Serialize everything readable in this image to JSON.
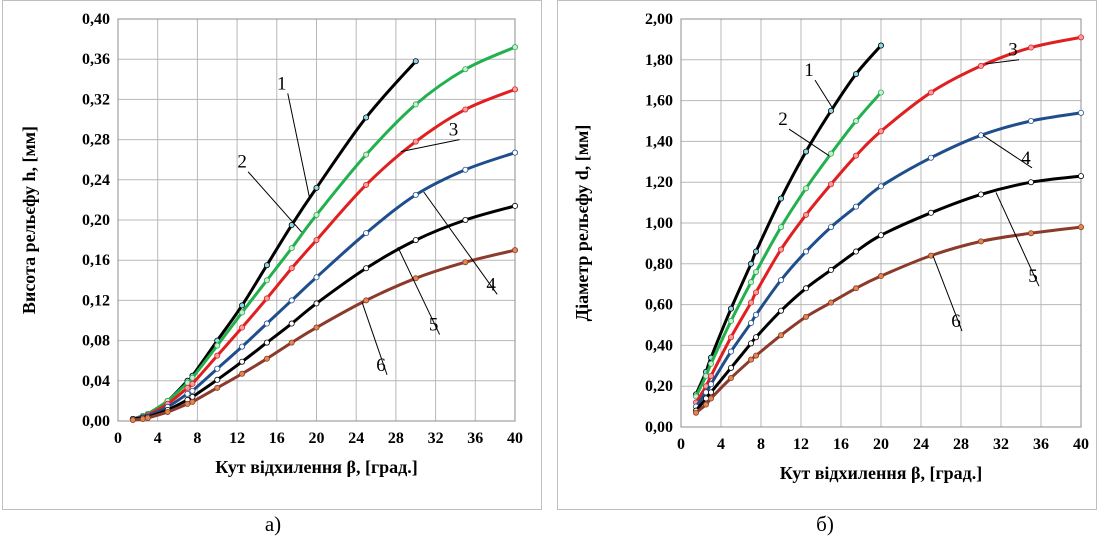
{
  "captions": {
    "left": "а)",
    "right": "б)"
  },
  "chart_data": [
    {
      "type": "line",
      "title": "",
      "xlabel": "Кут відхилення β, [град.]",
      "ylabel": "Висота рельєфу h, [мм]",
      "xlim": [
        0,
        40
      ],
      "ylim": [
        0,
        0.4
      ],
      "x_ticks": [
        "0",
        "4",
        "8",
        "12",
        "16",
        "20",
        "24",
        "28",
        "32",
        "36",
        "40"
      ],
      "y_ticks": [
        "0,00",
        "0,04",
        "0,08",
        "0,12",
        "0,16",
        "0,20",
        "0,24",
        "0,28",
        "0,32",
        "0,36",
        "0,40"
      ],
      "grid": true,
      "series": [
        {
          "name": "1",
          "color": "#000000",
          "marker_fill": "#8ed8e8",
          "x": [
            1.5,
            2.5,
            3,
            5,
            7,
            7.5,
            10,
            12.5,
            15,
            17.5,
            20,
            25,
            30
          ],
          "y": [
            0.002,
            0.005,
            0.007,
            0.02,
            0.04,
            0.045,
            0.08,
            0.115,
            0.155,
            0.195,
            0.232,
            0.302,
            0.358
          ]
        },
        {
          "name": "2",
          "color": "#22b14c",
          "marker_fill": "#cfe8d8",
          "x": [
            1.5,
            2.5,
            3,
            5,
            7,
            7.5,
            10,
            12.5,
            15,
            17.5,
            20,
            25,
            30,
            35,
            40
          ],
          "y": [
            0.002,
            0.005,
            0.007,
            0.02,
            0.038,
            0.043,
            0.075,
            0.108,
            0.14,
            0.172,
            0.205,
            0.265,
            0.315,
            0.35,
            0.372
          ]
        },
        {
          "name": "3",
          "color": "#e02020",
          "marker_fill": "#f2a2a2",
          "x": [
            1.5,
            2.5,
            3,
            5,
            7,
            7.5,
            10,
            12.5,
            15,
            17.5,
            20,
            25,
            30,
            35,
            40
          ],
          "y": [
            0.002,
            0.004,
            0.006,
            0.017,
            0.033,
            0.037,
            0.065,
            0.093,
            0.122,
            0.152,
            0.18,
            0.235,
            0.278,
            0.31,
            0.33
          ]
        },
        {
          "name": "4",
          "color": "#1f4e8c",
          "marker_fill": "#ffffff",
          "x": [
            1.5,
            2.5,
            3,
            5,
            7,
            7.5,
            10,
            12.5,
            15,
            17.5,
            20,
            25,
            30,
            35,
            40
          ],
          "y": [
            0.002,
            0.004,
            0.005,
            0.014,
            0.027,
            0.03,
            0.052,
            0.074,
            0.097,
            0.12,
            0.143,
            0.187,
            0.225,
            0.25,
            0.267
          ]
        },
        {
          "name": "5",
          "color": "#000000",
          "marker_fill": "#ffffff",
          "x": [
            1.5,
            2.5,
            3,
            5,
            7,
            7.5,
            10,
            12.5,
            15,
            17.5,
            20,
            25,
            30,
            35,
            40
          ],
          "y": [
            0.002,
            0.003,
            0.004,
            0.011,
            0.021,
            0.024,
            0.041,
            0.059,
            0.078,
            0.097,
            0.117,
            0.152,
            0.18,
            0.2,
            0.214
          ]
        },
        {
          "name": "6",
          "color": "#8b3a2b",
          "marker_fill": "#e08850",
          "x": [
            1.5,
            2.5,
            3,
            5,
            7,
            7.5,
            10,
            12.5,
            15,
            17.5,
            20,
            25,
            30,
            35,
            40
          ],
          "y": [
            0.001,
            0.002,
            0.003,
            0.009,
            0.017,
            0.019,
            0.033,
            0.047,
            0.062,
            0.078,
            0.093,
            0.12,
            0.142,
            0.158,
            0.17
          ]
        }
      ],
      "annotations": [
        {
          "text": "1",
          "label_x": 16.5,
          "label_y": 0.33,
          "target_x": 19.3,
          "target_y": 0.222
        },
        {
          "text": "2",
          "label_x": 12.5,
          "label_y": 0.252,
          "target_x": 18.5,
          "target_y": 0.188
        },
        {
          "text": "3",
          "label_x": 33.8,
          "label_y": 0.284,
          "target_x": 28.5,
          "target_y": 0.268
        },
        {
          "text": "4",
          "label_x": 37.6,
          "label_y": 0.13,
          "target_x": 30.8,
          "target_y": 0.228
        },
        {
          "text": "5",
          "label_x": 31.8,
          "label_y": 0.09,
          "target_x": 28.2,
          "target_y": 0.173
        },
        {
          "text": "6",
          "label_x": 26.5,
          "label_y": 0.05,
          "target_x": 24.6,
          "target_y": 0.118
        }
      ]
    },
    {
      "type": "line",
      "title": "",
      "xlabel": "Кут відхилення β, [град.]",
      "ylabel": "Діаметр рельєфу d, [мм]",
      "xlim": [
        0,
        40
      ],
      "ylim": [
        0,
        2
      ],
      "x_ticks": [
        "0",
        "4",
        "8",
        "12",
        "16",
        "20",
        "24",
        "28",
        "32",
        "36",
        "40"
      ],
      "y_ticks": [
        "0,00",
        "0,20",
        "0,40",
        "0,60",
        "0,80",
        "1,00",
        "1,20",
        "1,40",
        "1,60",
        "1,80",
        "2,00"
      ],
      "grid": true,
      "series": [
        {
          "name": "1",
          "color": "#000000",
          "marker_fill": "#8ed8e8",
          "x": [
            1.5,
            2.5,
            3,
            5,
            7,
            7.5,
            10,
            12.5,
            15,
            17.5,
            20
          ],
          "y": [
            0.16,
            0.27,
            0.34,
            0.58,
            0.8,
            0.86,
            1.12,
            1.35,
            1.55,
            1.73,
            1.87
          ]
        },
        {
          "name": "2",
          "color": "#22b14c",
          "marker_fill": "#cfe8d8",
          "x": [
            1.5,
            2.5,
            3,
            5,
            7,
            7.5,
            10,
            12.5,
            15,
            17.5,
            20
          ],
          "y": [
            0.15,
            0.25,
            0.31,
            0.52,
            0.71,
            0.76,
            0.98,
            1.17,
            1.34,
            1.5,
            1.64
          ]
        },
        {
          "name": "3",
          "color": "#e02020",
          "marker_fill": "#f2a2a2",
          "x": [
            1.5,
            2.5,
            3,
            5,
            7,
            7.5,
            10,
            12.5,
            15,
            17.5,
            20,
            25,
            30,
            35,
            40
          ],
          "y": [
            0.12,
            0.2,
            0.25,
            0.44,
            0.61,
            0.66,
            0.87,
            1.04,
            1.19,
            1.33,
            1.45,
            1.64,
            1.77,
            1.86,
            1.91
          ]
        },
        {
          "name": "4",
          "color": "#1f4e8c",
          "marker_fill": "#ffffff",
          "x": [
            1.5,
            2.5,
            3,
            5,
            7,
            7.5,
            10,
            12.5,
            15,
            17.5,
            20,
            25,
            30,
            35,
            40
          ],
          "y": [
            0.1,
            0.17,
            0.21,
            0.37,
            0.51,
            0.55,
            0.72,
            0.86,
            0.98,
            1.08,
            1.18,
            1.32,
            1.43,
            1.5,
            1.54
          ]
        },
        {
          "name": "5",
          "color": "#000000",
          "marker_fill": "#ffffff",
          "x": [
            1.5,
            2.5,
            3,
            5,
            7,
            7.5,
            10,
            12.5,
            15,
            17.5,
            20,
            25,
            30,
            35,
            40
          ],
          "y": [
            0.08,
            0.14,
            0.17,
            0.29,
            0.41,
            0.44,
            0.57,
            0.68,
            0.77,
            0.86,
            0.94,
            1.05,
            1.14,
            1.2,
            1.23
          ]
        },
        {
          "name": "6",
          "color": "#8b3a2b",
          "marker_fill": "#e08850",
          "x": [
            1.5,
            2.5,
            3,
            5,
            7,
            7.5,
            10,
            12.5,
            15,
            17.5,
            20,
            25,
            30,
            35,
            40
          ],
          "y": [
            0.07,
            0.11,
            0.14,
            0.24,
            0.33,
            0.35,
            0.45,
            0.54,
            0.61,
            0.68,
            0.74,
            0.84,
            0.91,
            0.95,
            0.98
          ]
        }
      ],
      "annotations": [
        {
          "text": "1",
          "label_x": 12.8,
          "label_y": 1.72,
          "target_x": 15.2,
          "target_y": 1.56
        },
        {
          "text": "2",
          "label_x": 10.2,
          "label_y": 1.48,
          "target_x": 14.8,
          "target_y": 1.33
        },
        {
          "text": "3",
          "label_x": 33.2,
          "label_y": 1.82,
          "target_x": 30.5,
          "target_y": 1.78
        },
        {
          "text": "4",
          "label_x": 34.5,
          "label_y": 1.29,
          "target_x": 30.2,
          "target_y": 1.43
        },
        {
          "text": "5",
          "label_x": 35.2,
          "label_y": 0.71,
          "target_x": 31.5,
          "target_y": 1.15
        },
        {
          "text": "6",
          "label_x": 27.5,
          "label_y": 0.49,
          "target_x": 25.2,
          "target_y": 0.84
        }
      ]
    }
  ]
}
